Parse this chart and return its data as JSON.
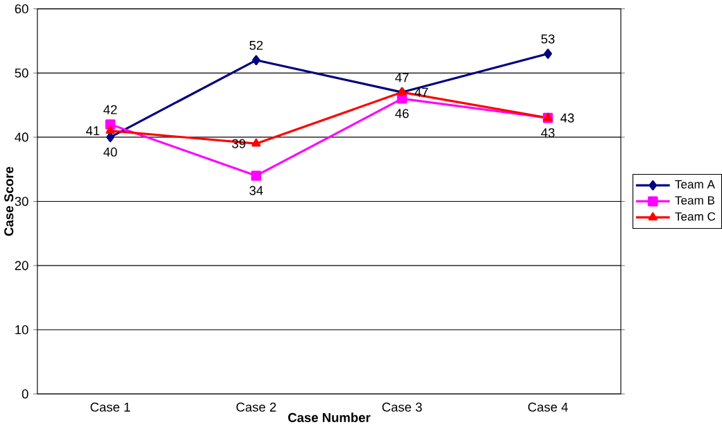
{
  "chart_data": {
    "type": "line",
    "xlabel": "Case Number",
    "ylabel": "Case Score",
    "categories": [
      "Case 1",
      "Case 2",
      "Case 3",
      "Case 4"
    ],
    "series": [
      {
        "name": "Team A",
        "color": "#000080",
        "marker": "diamond",
        "values": [
          40,
          52,
          47,
          53
        ]
      },
      {
        "name": "Team B",
        "color": "#ff00ff",
        "marker": "square",
        "values": [
          42,
          34,
          46,
          43
        ]
      },
      {
        "name": "Team C",
        "color": "#ff0000",
        "marker": "triangle",
        "values": [
          41,
          39,
          47,
          43
        ]
      }
    ],
    "ylim": [
      0,
      60
    ],
    "yticks": [
      0,
      10,
      20,
      30,
      40,
      50,
      60
    ],
    "grid": "y",
    "legend": "right",
    "data_labels": true,
    "line_style": "solid"
  }
}
